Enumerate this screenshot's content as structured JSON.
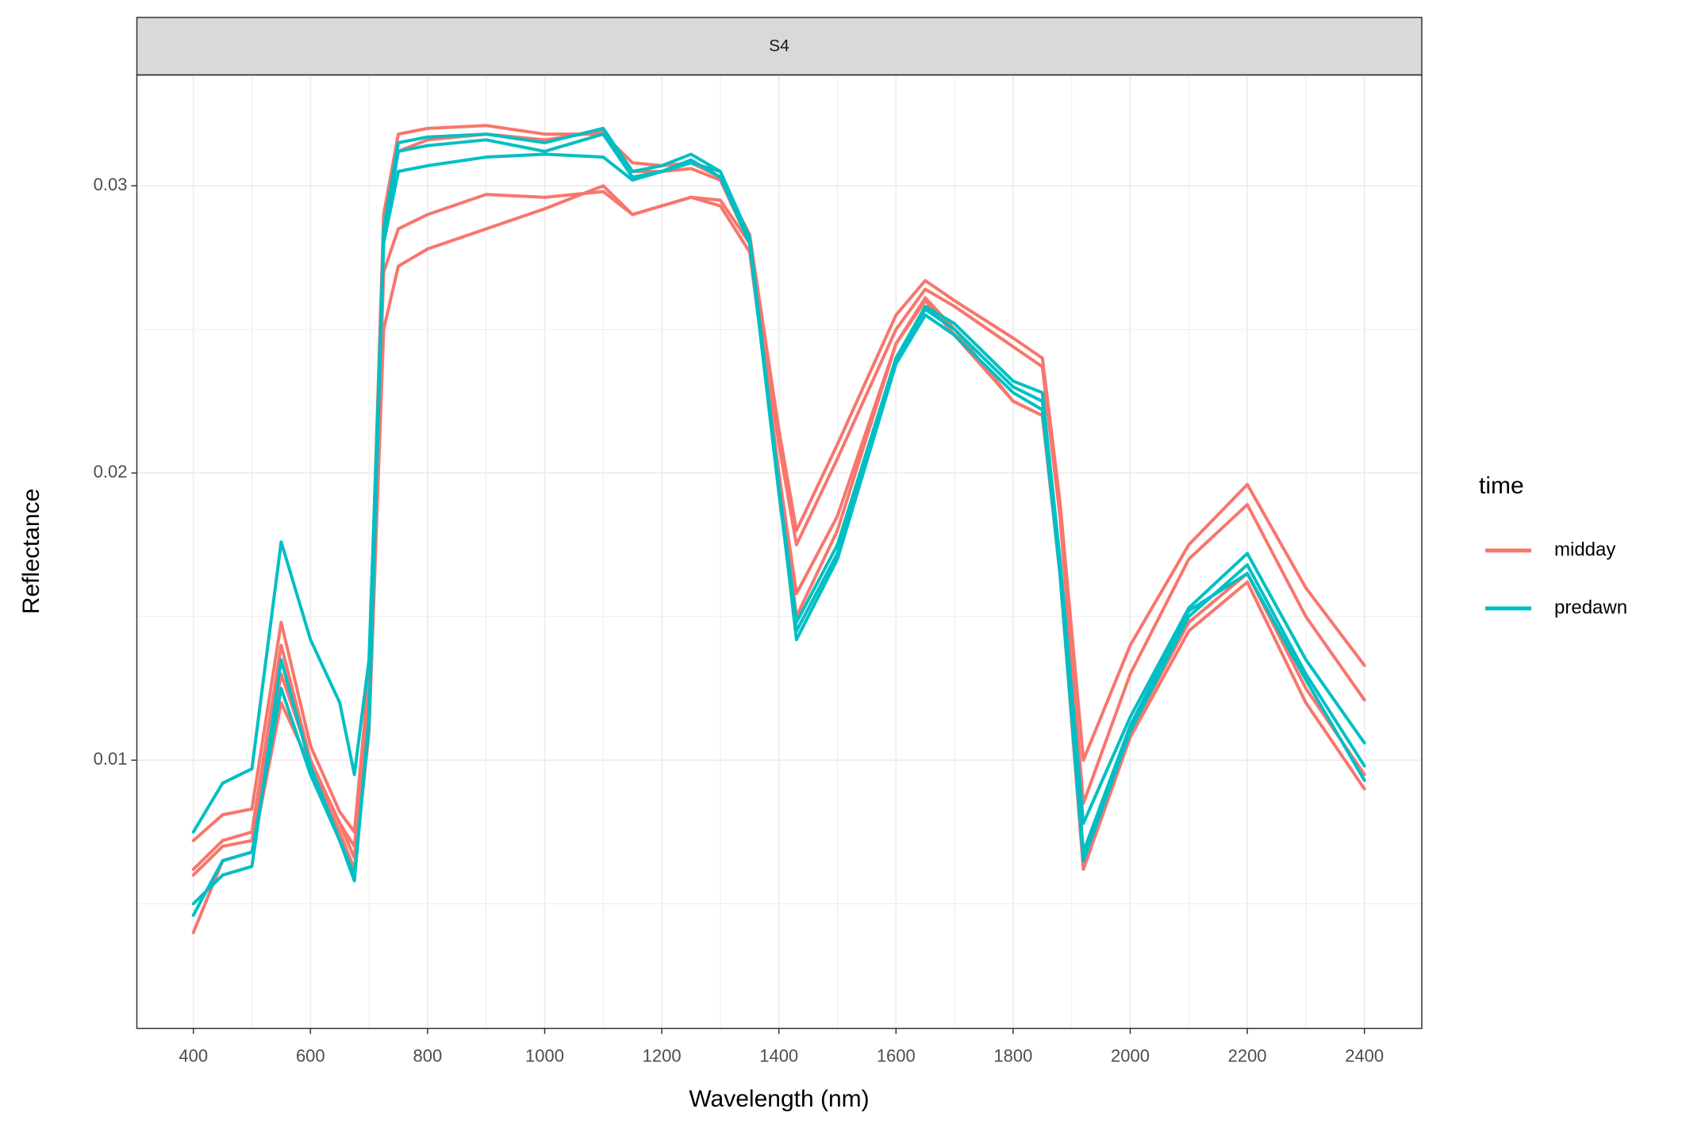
{
  "chart_data": {
    "type": "line",
    "panel": "S4",
    "x_label": "Wavelength (nm)",
    "y_label": "Reflectance",
    "legend_title": "time",
    "legend_position": "right",
    "grid": true,
    "xlim": [
      303.5,
      2498
    ],
    "ylim": [
      0.00066,
      0.03386
    ],
    "xticks": [
      400,
      600,
      800,
      1000,
      1200,
      1400,
      1600,
      1800,
      2000,
      2200,
      2400
    ],
    "xminor": [
      500,
      700,
      900,
      1100,
      1300,
      1500,
      1700,
      1900,
      2100,
      2300
    ],
    "yticks": [
      0.01,
      0.02,
      0.03
    ],
    "yminor": [
      0.005,
      0.015,
      0.025
    ],
    "x": [
      400,
      450,
      500,
      550,
      600,
      650,
      675,
      700,
      725,
      750,
      800,
      900,
      1000,
      1100,
      1150,
      1200,
      1250,
      1300,
      1350,
      1400,
      1430,
      1500,
      1600,
      1650,
      1700,
      1800,
      1850,
      1880,
      1920,
      2000,
      2100,
      2200,
      2300,
      2400
    ],
    "series": [
      {
        "name": "midday",
        "color": "#F8766D",
        "values": [
          [
            0.0072,
            0.0081,
            0.0083,
            0.0148,
            0.0105,
            0.0082,
            0.0075,
            0.013,
            0.029,
            0.0318,
            0.032,
            0.0321,
            0.0318,
            0.0318,
            0.0308,
            0.0307,
            0.0308,
            0.0303,
            0.0283,
            0.0215,
            0.018,
            0.021,
            0.0255,
            0.0267,
            0.026,
            0.0247,
            0.024,
            0.019,
            0.01,
            0.014,
            0.0175,
            0.0196,
            0.016,
            0.0133
          ],
          [
            0.0062,
            0.0072,
            0.0075,
            0.014,
            0.01,
            0.0078,
            0.007,
            0.012,
            0.027,
            0.0285,
            0.029,
            0.0297,
            0.0296,
            0.0298,
            0.029,
            0.0293,
            0.0296,
            0.0295,
            0.028,
            0.021,
            0.0175,
            0.0205,
            0.025,
            0.0264,
            0.0258,
            0.0244,
            0.0237,
            0.0185,
            0.0085,
            0.013,
            0.017,
            0.0189,
            0.015,
            0.0121
          ],
          [
            0.004,
            0.0065,
            0.0068,
            0.012,
            0.0098,
            0.0075,
            0.0062,
            0.011,
            0.025,
            0.0272,
            0.0278,
            0.0285,
            0.0292,
            0.03,
            0.029,
            0.0293,
            0.0296,
            0.0293,
            0.0277,
            0.02,
            0.0158,
            0.0185,
            0.0245,
            0.026,
            0.0248,
            0.0225,
            0.022,
            0.0165,
            0.0062,
            0.0108,
            0.0145,
            0.0162,
            0.012,
            0.009
          ],
          [
            0.006,
            0.007,
            0.0072,
            0.013,
            0.01,
            0.0078,
            0.0066,
            0.012,
            0.0285,
            0.0312,
            0.0316,
            0.0318,
            0.0316,
            0.0319,
            0.0305,
            0.0305,
            0.0306,
            0.0302,
            0.028,
            0.02,
            0.015,
            0.018,
            0.0245,
            0.0261,
            0.025,
            0.0225,
            0.022,
            0.0168,
            0.0065,
            0.011,
            0.0148,
            0.0165,
            0.0125,
            0.0095
          ]
        ]
      },
      {
        "name": "predawn",
        "color": "#00BFC4",
        "values": [
          [
            0.0075,
            0.0092,
            0.0097,
            0.0176,
            0.0142,
            0.012,
            0.0095,
            0.0135,
            0.028,
            0.0305,
            0.0307,
            0.031,
            0.0311,
            0.031,
            0.0302,
            0.0305,
            0.0308,
            0.0305,
            0.0282,
            0.0195,
            0.0148,
            0.0175,
            0.024,
            0.0258,
            0.0252,
            0.0232,
            0.0228,
            0.017,
            0.0078,
            0.0115,
            0.0153,
            0.0172,
            0.0135,
            0.0106
          ],
          [
            0.005,
            0.006,
            0.0063,
            0.0135,
            0.0098,
            0.0072,
            0.0058,
            0.0115,
            0.0285,
            0.0315,
            0.0317,
            0.0318,
            0.0315,
            0.032,
            0.0305,
            0.0307,
            0.0311,
            0.0305,
            0.0282,
            0.0195,
            0.0142,
            0.017,
            0.0238,
            0.0255,
            0.0248,
            0.0228,
            0.0222,
            0.0165,
            0.0065,
            0.011,
            0.015,
            0.0168,
            0.013,
            0.0098
          ],
          [
            0.0046,
            0.0065,
            0.0068,
            0.0125,
            0.0095,
            0.0072,
            0.006,
            0.0112,
            0.0282,
            0.0312,
            0.0314,
            0.0316,
            0.0312,
            0.0318,
            0.0303,
            0.0305,
            0.0309,
            0.0303,
            0.028,
            0.0193,
            0.0145,
            0.0172,
            0.024,
            0.0257,
            0.025,
            0.023,
            0.0225,
            0.0168,
            0.0068,
            0.0112,
            0.0152,
            0.0165,
            0.0128,
            0.0093
          ]
        ]
      }
    ]
  }
}
